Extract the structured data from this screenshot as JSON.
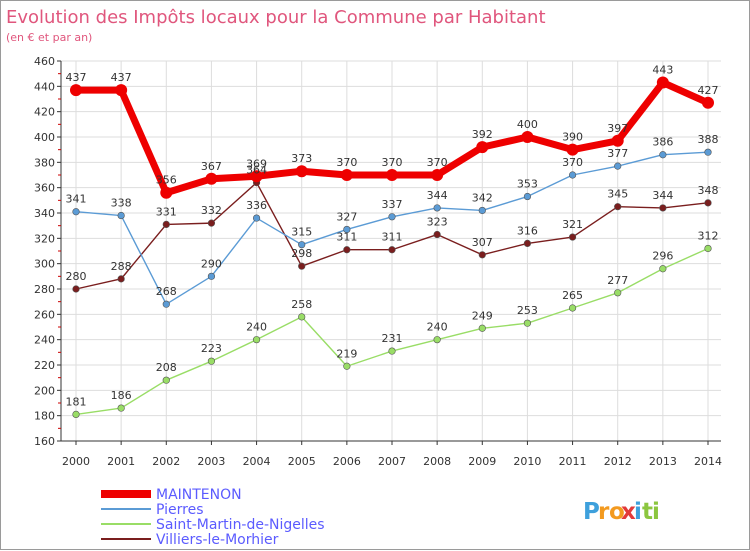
{
  "chart_data": {
    "type": "line",
    "title": "Evolution des Impôts locaux pour la Commune par Habitant",
    "subtitle": "(en € et par an)",
    "xlabel": "",
    "ylabel": "",
    "x": [
      "2000",
      "2001",
      "2002",
      "2003",
      "2004",
      "2005",
      "2006",
      "2007",
      "2008",
      "2009",
      "2010",
      "2011",
      "2012",
      "2013",
      "2014"
    ],
    "ylim": [
      160,
      460
    ],
    "ytick_step": 20,
    "grid": true,
    "legend_position": "bottom-left",
    "series": [
      {
        "name": "MAINTENON",
        "color": "#ee0000",
        "values": [
          437,
          437,
          356,
          367,
          369,
          373,
          370,
          370,
          370,
          392,
          400,
          390,
          397,
          443,
          427
        ]
      },
      {
        "name": "Pierres",
        "color": "#5b9bd5",
        "values": [
          341,
          338,
          268,
          290,
          336,
          315,
          327,
          337,
          344,
          342,
          353,
          370,
          377,
          386,
          388
        ]
      },
      {
        "name": "Saint-Martin-de-Nigelles",
        "color": "#99dd66",
        "values": [
          181,
          186,
          208,
          223,
          240,
          258,
          219,
          231,
          240,
          249,
          253,
          265,
          277,
          296,
          312
        ]
      },
      {
        "name": "Villiers-le-Morhier",
        "color": "#7a1e1e",
        "values": [
          280,
          288,
          331,
          332,
          364,
          298,
          311,
          311,
          323,
          307,
          316,
          321,
          345,
          344,
          348
        ]
      }
    ],
    "data_labels": [
      [
        437,
        437,
        356,
        367,
        369,
        373,
        370,
        370,
        370,
        392,
        400,
        390,
        397,
        443,
        427
      ],
      [
        341,
        338,
        268,
        290,
        336,
        315,
        327,
        337,
        344,
        342,
        353,
        370,
        377,
        386,
        388
      ],
      [
        181,
        186,
        208,
        223,
        240,
        258,
        219,
        231,
        240,
        249,
        253,
        265,
        277,
        296,
        312
      ],
      [
        280,
        288,
        331,
        332,
        364,
        298,
        311,
        311,
        323,
        307,
        316,
        321,
        345,
        344,
        348
      ]
    ]
  },
  "colors": {
    "title": "#e0567d",
    "legend_text": "#5b5bff",
    "axis": "#333333",
    "grid": "#dddddd",
    "minor_tick": "#cc0000"
  },
  "brand": {
    "logo_text": "Proxiti",
    "letter_colors": [
      "#3ea0dc",
      "#f39a1f",
      "#f39a1f",
      "#e23a3a",
      "#3ea0dc",
      "#8cc63f",
      "#8cc63f"
    ]
  }
}
